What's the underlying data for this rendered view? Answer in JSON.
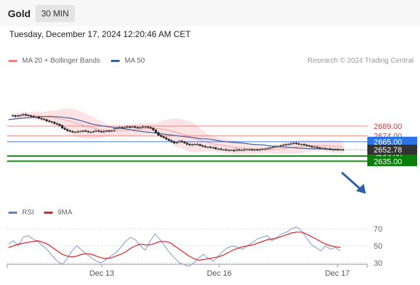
{
  "header": {
    "title": "Gold",
    "interval": "30 MIN",
    "datetime": "Tuesday, December 17, 2024 12:20:46 AM CET"
  },
  "legend": {
    "ma20_label": "MA 20 + Bollinger Bands",
    "ma20_color": "#f08080",
    "ma50_label": "MA 50",
    "ma50_color": "#3a5f9a",
    "credit": "Research © 2024 Trading Central"
  },
  "rsi_legend": {
    "rsi_label": "RSI",
    "rsi_color": "#5b7fd6",
    "ma_label": "9MA",
    "ma_color": "#e02020"
  },
  "chart_data": [
    {
      "type": "candlestick",
      "ylim": [
        2630,
        2708
      ],
      "x_ticks": [
        "Dec 13",
        "Dec 16",
        "Dec 17"
      ],
      "levels": [
        {
          "label": "2689.00",
          "value": 2689,
          "kind": "resistance",
          "color": "#f08080"
        },
        {
          "label": "2674.00",
          "value": 2674,
          "kind": "resistance",
          "color": "#f08080"
        },
        {
          "label": "2665.00",
          "value": 2665,
          "kind": "pivot",
          "color": "#3a7ae0"
        },
        {
          "label": "2643.00",
          "value": 2643,
          "kind": "support",
          "color": "#1a8a1a"
        },
        {
          "label": "2635.00",
          "value": 2635,
          "kind": "support",
          "color": "#1a8a1a"
        }
      ],
      "last_price": {
        "label": "2652.78",
        "value": 2652.78
      },
      "close": [
        2705,
        2704,
        2705,
        2706,
        2707,
        2706,
        2705,
        2704,
        2703,
        2703,
        2701,
        2700,
        2699,
        2697,
        2696,
        2695,
        2693,
        2692,
        2690,
        2686,
        2684,
        2682,
        2681,
        2680,
        2680,
        2681,
        2681,
        2682,
        2681,
        2680,
        2680,
        2681,
        2682,
        2681,
        2680,
        2681,
        2682,
        2681,
        2682,
        2685,
        2686,
        2687,
        2686,
        2687,
        2688,
        2687,
        2688,
        2687,
        2686,
        2687,
        2688,
        2688,
        2687,
        2686,
        2683,
        2679,
        2675,
        2673,
        2671,
        2669,
        2667,
        2665,
        2663,
        2664,
        2666,
        2665,
        2663,
        2661,
        2660,
        2661,
        2661,
        2661,
        2659,
        2658,
        2657,
        2657,
        2656,
        2656,
        2654,
        2654,
        2653,
        2653,
        2652,
        2652,
        2652,
        2651,
        2653,
        2652,
        2652,
        2653,
        2653,
        2653,
        2652,
        2653,
        2652,
        2653,
        2654,
        2654,
        2655,
        2656,
        2657,
        2658,
        2658,
        2659,
        2660,
        2661,
        2661,
        2662,
        2663,
        2662,
        2661,
        2661,
        2660,
        2659,
        2658,
        2657,
        2657,
        2656,
        2655,
        2655,
        2654,
        2654,
        2653,
        2653,
        2653,
        2653,
        2653,
        2652.78
      ],
      "ma50_approx": [
        2699,
        2701,
        2703,
        2704,
        2703,
        2701,
        2697,
        2692,
        2689,
        2687,
        2685,
        2682,
        2680,
        2678,
        2676,
        2674,
        2672,
        2670,
        2669,
        2666,
        2664,
        2663,
        2661,
        2660,
        2658,
        2657,
        2655,
        2654,
        2654,
        2653
      ],
      "ma50_x": [
        12,
        30,
        50,
        70,
        85,
        100,
        115,
        130,
        145,
        160,
        175,
        190,
        205,
        220,
        235,
        250,
        265,
        280,
        295,
        310,
        325,
        340,
        355,
        370,
        385,
        400,
        420,
        440,
        460,
        478
      ]
    },
    {
      "type": "line",
      "title": "RSI",
      "y_ticks": [
        70,
        50,
        30
      ],
      "ylim": [
        20,
        80
      ],
      "rsi": [
        52,
        56,
        50,
        60,
        62,
        58,
        55,
        50,
        45,
        38,
        32,
        28,
        35,
        44,
        50,
        45,
        40,
        36,
        32,
        30,
        34,
        38,
        42,
        48,
        55,
        60,
        57,
        50,
        45,
        55,
        64,
        58,
        50,
        42,
        36,
        30,
        28,
        26,
        30,
        36,
        40,
        35,
        32,
        38,
        44,
        48,
        50,
        48,
        46,
        50,
        54,
        58,
        60,
        62,
        56,
        60,
        64,
        66,
        70,
        72,
        68,
        60,
        52,
        48,
        44,
        50,
        46,
        48,
        44
      ],
      "ma9": [
        48,
        50,
        52,
        53,
        54,
        55,
        56,
        54,
        52,
        48,
        44,
        40,
        38,
        37,
        38,
        40,
        41,
        40,
        38,
        36,
        35,
        36,
        38,
        40,
        43,
        47,
        50,
        52,
        51,
        51,
        53,
        55,
        55,
        54,
        50,
        46,
        42,
        38,
        35,
        33,
        34,
        35,
        36,
        37,
        39,
        42,
        45,
        47,
        49,
        50,
        51,
        53,
        55,
        57,
        58,
        59,
        61,
        63,
        65,
        66,
        66,
        64,
        61,
        58,
        55,
        52,
        50,
        49,
        48
      ]
    }
  ]
}
